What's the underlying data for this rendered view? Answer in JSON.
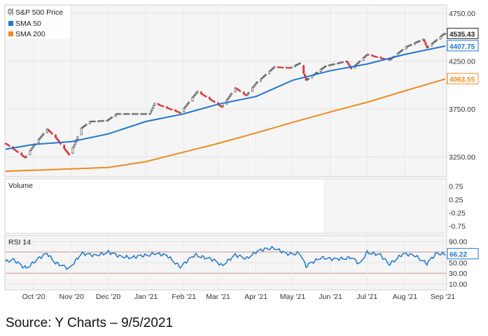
{
  "source": "Source: Y Charts – 9/5/2021",
  "chart_data": [
    {
      "type": "line",
      "panel": "price",
      "legend_placement": "top-left",
      "grid": true,
      "ylim": [
        3050,
        4830
      ],
      "y_ticks": [
        "4750.00",
        "4250.00",
        "3750.00",
        "3250.00"
      ],
      "x_tick_labels": [
        "Oct '20",
        "Nov '20",
        "Dec '20",
        "Jan '21",
        "Feb '21",
        "Mar '21",
        "Apr '21",
        "May '21",
        "Jun '21",
        "Jul '21",
        "Aug '21",
        "Sep '21"
      ],
      "x_tick_dates": [
        "2020-10-01",
        "2020-11-01",
        "2020-12-01",
        "2021-01-01",
        "2021-02-01",
        "2021-03-01",
        "2021-04-01",
        "2021-05-01",
        "2021-06-01",
        "2021-07-01",
        "2021-08-01",
        "2021-09-01"
      ],
      "x_range": [
        "2020-09-08",
        "2021-09-03"
      ],
      "series": [
        {
          "name": "S&P 500 Price",
          "style": "candlestick",
          "icon": "candlestick-icon",
          "color_up": "#555555",
          "color_down": "#d93a3a",
          "last_value": "4535.43",
          "x": [
            "2020-09-08",
            "2020-09-21",
            "2020-09-24",
            "2020-10-01",
            "2020-10-12",
            "2020-10-19",
            "2020-10-30",
            "2020-11-03",
            "2020-11-09",
            "2020-11-16",
            "2020-11-30",
            "2020-12-08",
            "2020-12-21",
            "2021-01-04",
            "2021-01-08",
            "2021-01-29",
            "2021-02-12",
            "2021-02-25",
            "2021-03-04",
            "2021-03-15",
            "2021-03-24",
            "2021-04-01",
            "2021-04-16",
            "2021-04-29",
            "2021-05-07",
            "2021-05-12",
            "2021-05-28",
            "2021-06-14",
            "2021-06-18",
            "2021-07-01",
            "2021-07-19",
            "2021-08-02",
            "2021-08-16",
            "2021-08-19",
            "2021-09-02"
          ],
          "y": [
            3390,
            3270,
            3240,
            3370,
            3540,
            3450,
            3270,
            3370,
            3550,
            3620,
            3630,
            3700,
            3700,
            3700,
            3810,
            3710,
            3935,
            3830,
            3770,
            3970,
            3890,
            4020,
            4190,
            4180,
            4230,
            4050,
            4200,
            4250,
            4170,
            4320,
            4260,
            4400,
            4480,
            4390,
            4537
          ]
        },
        {
          "name": "SMA 50",
          "color": "#1f77d0",
          "last_value": "4407.75",
          "x": [
            "2020-09-08",
            "2020-10-01",
            "2020-11-01",
            "2020-12-01",
            "2021-01-01",
            "2021-02-01",
            "2021-03-01",
            "2021-04-01",
            "2021-05-01",
            "2021-06-01",
            "2021-07-01",
            "2021-08-01",
            "2021-09-03"
          ],
          "y": [
            3330,
            3380,
            3410,
            3490,
            3620,
            3700,
            3800,
            3880,
            4050,
            4150,
            4220,
            4320,
            4407.75
          ]
        },
        {
          "name": "SMA 200",
          "color": "#f08a1e",
          "last_value": "4063.55",
          "x": [
            "2020-09-08",
            "2020-10-01",
            "2020-11-01",
            "2020-12-01",
            "2021-01-01",
            "2021-02-01",
            "2021-03-01",
            "2021-04-01",
            "2021-05-01",
            "2021-06-01",
            "2021-07-01",
            "2021-08-01",
            "2021-09-03"
          ],
          "y": [
            3100,
            3110,
            3125,
            3140,
            3200,
            3300,
            3390,
            3500,
            3610,
            3720,
            3820,
            3940,
            4063.55
          ]
        }
      ]
    },
    {
      "type": "line",
      "panel": "volume",
      "title": "Volume",
      "y_ticks": [
        "0.75",
        "0.25",
        "-0.25",
        "-0.75"
      ],
      "ylim": [
        -1,
        1
      ],
      "series": []
    },
    {
      "type": "line",
      "panel": "rsi",
      "title": "RSI 14",
      "ylim": [
        0,
        100
      ],
      "y_ticks": [
        "90.00",
        "70.00",
        "50.00",
        "30.00",
        "10.00"
      ],
      "reference_lines": [
        70,
        30
      ],
      "series": [
        {
          "name": "RSI 14",
          "color": "#1f77d0",
          "last_value": "66.22",
          "x": [
            "2020-09-08",
            "2020-09-14",
            "2020-09-21",
            "2020-09-25",
            "2020-10-05",
            "2020-10-12",
            "2020-10-19",
            "2020-10-30",
            "2020-11-09",
            "2020-11-20",
            "2020-12-01",
            "2020-12-10",
            "2020-12-21",
            "2021-01-04",
            "2021-01-08",
            "2021-01-19",
            "2021-01-29",
            "2021-02-10",
            "2021-02-25",
            "2021-03-04",
            "2021-03-15",
            "2021-03-24",
            "2021-04-01",
            "2021-04-09",
            "2021-04-16",
            "2021-04-26",
            "2021-05-07",
            "2021-05-12",
            "2021-05-24",
            "2021-06-04",
            "2021-06-18",
            "2021-06-25",
            "2021-07-01",
            "2021-07-12",
            "2021-07-19",
            "2021-07-30",
            "2021-08-09",
            "2021-08-19",
            "2021-08-27",
            "2021-09-03"
          ],
          "y": [
            52,
            56,
            44,
            40,
            58,
            67,
            50,
            38,
            68,
            63,
            70,
            62,
            60,
            65,
            68,
            62,
            42,
            65,
            55,
            45,
            64,
            58,
            70,
            76,
            78,
            66,
            68,
            43,
            60,
            56,
            60,
            47,
            70,
            64,
            47,
            66,
            64,
            48,
            68,
            66.22
          ]
        }
      ]
    }
  ]
}
